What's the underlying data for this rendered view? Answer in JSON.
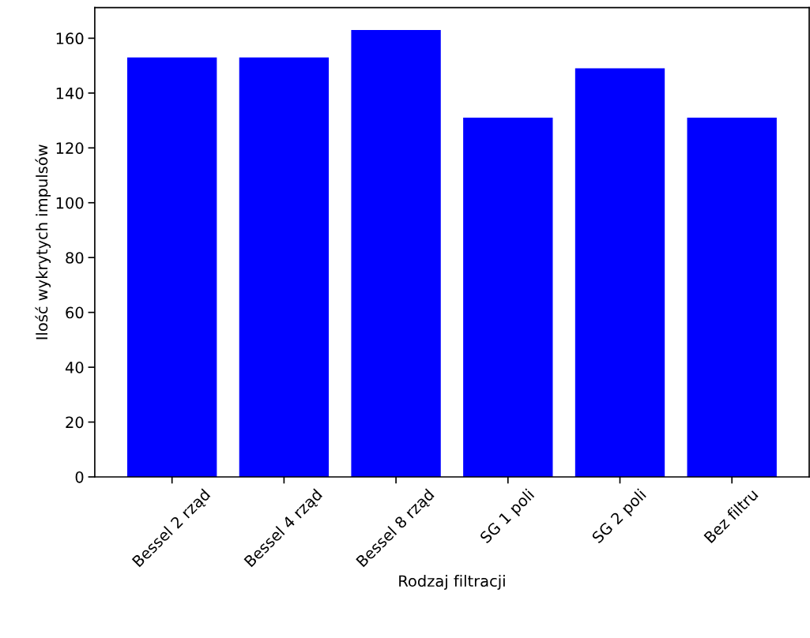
{
  "chart_data": {
    "type": "bar",
    "xlabel": "Rodzaj filtracji",
    "ylabel": "Ilość wykrytych impulsów",
    "categories": [
      "Bessel 2 rząd",
      "Bessel 4 rząd",
      "Bessel 8 rząd",
      "SG 1 poli",
      "SG 2 poli",
      "Bez filtru"
    ],
    "values": [
      153,
      153,
      163,
      131,
      149,
      131
    ],
    "color": "#0000ff",
    "ylim": [
      0,
      171.15
    ],
    "yticks": [
      0,
      20,
      40,
      60,
      80,
      100,
      120,
      140,
      160
    ],
    "grid": false,
    "legend": false
  }
}
